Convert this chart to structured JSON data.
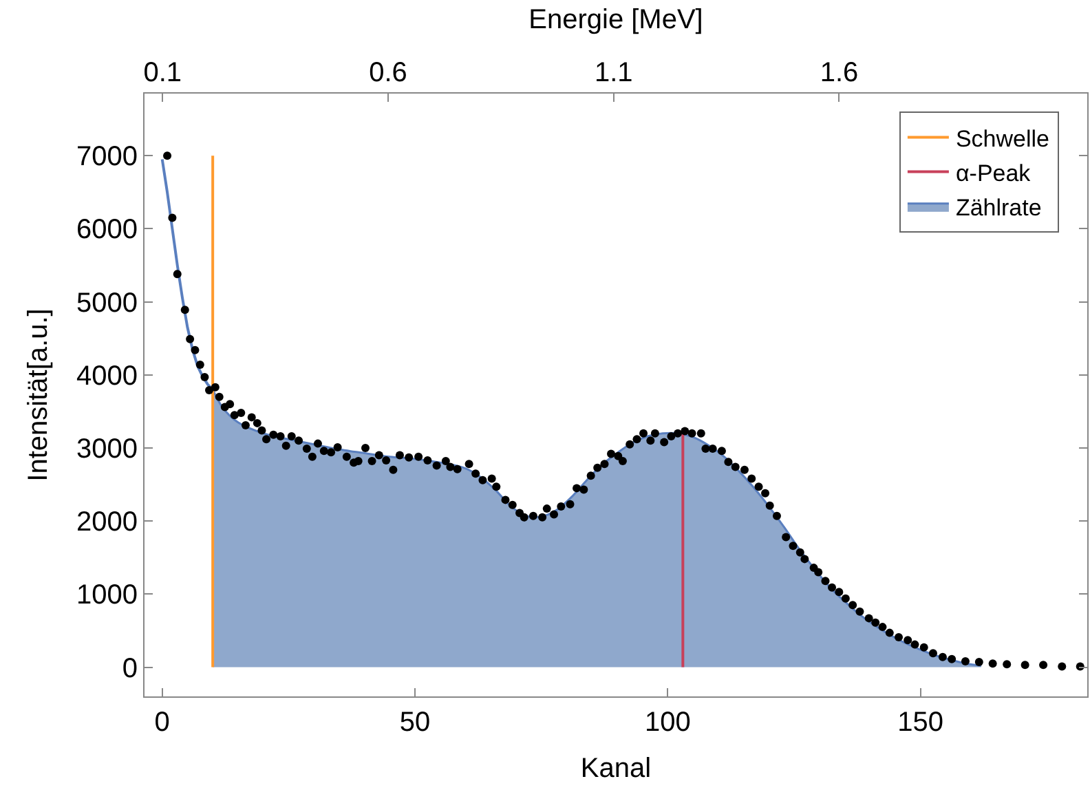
{
  "chart_data": {
    "type": "scatter",
    "xlabel": "Kanal",
    "ylabel": "Intensität[a.u.]",
    "x2label": "Energie [MeV]",
    "xlim": [
      -3.5,
      183
    ],
    "xticks": [
      0,
      50,
      100,
      150
    ],
    "ylim": [
      -400,
      7850
    ],
    "yticks": [
      0,
      1000,
      2000,
      3000,
      4000,
      5000,
      6000,
      7000
    ],
    "x2lim": [
      0.06,
      2.15
    ],
    "x2ticks": [
      0.1,
      0.6,
      1.1,
      1.6
    ],
    "legend": "top right",
    "series": [
      {
        "name": "Zählrate",
        "type": "area",
        "color": "#8fa8cc",
        "x": [
          10,
          12,
          15,
          20,
          25,
          30,
          35,
          40,
          45,
          50,
          55,
          60,
          63,
          66,
          69,
          72,
          75,
          78,
          81,
          84,
          87,
          90,
          93,
          96,
          99,
          102,
          105,
          108,
          111,
          114,
          117,
          120,
          123,
          126,
          129,
          132,
          135,
          138,
          141,
          144,
          147,
          150,
          153,
          156,
          159,
          162
        ],
        "values": [
          3800,
          3550,
          3350,
          3200,
          3120,
          3050,
          2980,
          2930,
          2880,
          2850,
          2800,
          2720,
          2600,
          2420,
          2200,
          2070,
          2060,
          2150,
          2330,
          2560,
          2770,
          2930,
          3070,
          3160,
          3200,
          3200,
          3150,
          3040,
          2890,
          2690,
          2460,
          2200,
          1920,
          1620,
          1350,
          1100,
          900,
          720,
          570,
          440,
          330,
          240,
          160,
          100,
          50,
          20
        ]
      },
      {
        "type": "line",
        "color": "#5a7fbf",
        "x": [
          0,
          1,
          2,
          3,
          4,
          5,
          6,
          7,
          8,
          9,
          10
        ],
        "values": [
          6950,
          6500,
          6000,
          5500,
          5050,
          4650,
          4350,
          4120,
          3980,
          3870,
          3800
        ]
      },
      {
        "name": "Schwelle",
        "type": "line",
        "color": "#ff9a2e",
        "x": [
          10,
          10
        ],
        "values": [
          0,
          7000
        ]
      },
      {
        "name": "α-Peak",
        "type": "line",
        "color": "#c8405a",
        "x": [
          103,
          103
        ],
        "values": [
          0,
          3200
        ]
      },
      {
        "marker": "circle",
        "color": "#000000",
        "x": [
          1,
          2,
          3,
          4.5,
          5.5,
          6.5,
          7.5,
          8.4,
          9.3,
          10.5,
          11.3,
          12.4,
          13.4,
          14.3,
          15.6,
          16.5,
          17.7,
          18.8,
          19.7,
          20.6,
          22,
          23.4,
          24.5,
          25.6,
          27,
          28.6,
          29.7,
          30.8,
          32,
          33.4,
          34.7,
          36.5,
          37.9,
          38.8,
          40.2,
          41.5,
          42.9,
          44.3,
          45.7,
          47,
          48.8,
          50.7,
          52.5,
          54.3,
          56.1,
          57,
          58.4,
          60.7,
          62,
          63.4,
          65.2,
          66.1,
          67.9,
          69.3,
          70.7,
          71.6,
          73.4,
          75.2,
          76.1,
          77.5,
          78.9,
          80.7,
          82,
          83.4,
          84.8,
          86.1,
          87.5,
          88.8,
          90.2,
          91.1,
          92.5,
          93.9,
          95.2,
          96.6,
          97.5,
          99.3,
          100.7,
          102,
          103.4,
          104.8,
          106.6,
          107.5,
          108.9,
          110.7,
          112,
          113.4,
          115.2,
          116.6,
          118,
          119.3,
          120.2,
          121.6,
          123.4,
          124.8,
          126.2,
          127.1,
          128.9,
          129.8,
          131.2,
          132.5,
          133.9,
          135.2,
          136.6,
          138,
          139.8,
          141.1,
          142.5,
          143.9,
          145.7,
          147.5,
          148.9,
          150.7,
          152.5,
          154.4,
          156.2,
          158.9,
          161.6,
          164.3,
          167.1,
          170.7,
          174.3,
          178,
          181.6
        ],
        "values": [
          7000,
          6150,
          5380,
          4890,
          4490,
          4340,
          4140,
          3970,
          3790,
          3830,
          3700,
          3560,
          3600,
          3450,
          3480,
          3310,
          3420,
          3340,
          3240,
          3120,
          3180,
          3160,
          3030,
          3160,
          3100,
          2990,
          2880,
          3060,
          2960,
          2940,
          3010,
          2880,
          2800,
          2820,
          3000,
          2820,
          2900,
          2830,
          2700,
          2900,
          2870,
          2880,
          2830,
          2760,
          2820,
          2740,
          2710,
          2780,
          2650,
          2560,
          2580,
          2470,
          2290,
          2220,
          2110,
          2050,
          2070,
          2050,
          2170,
          2090,
          2200,
          2230,
          2450,
          2430,
          2620,
          2730,
          2780,
          2920,
          2890,
          2820,
          3050,
          3120,
          3200,
          3100,
          3200,
          3080,
          3160,
          3200,
          3230,
          3200,
          3200,
          2990,
          2990,
          2960,
          2810,
          2740,
          2700,
          2580,
          2470,
          2380,
          2210,
          2070,
          1780,
          1660,
          1570,
          1480,
          1360,
          1300,
          1180,
          1090,
          1030,
          940,
          850,
          760,
          670,
          610,
          550,
          470,
          410,
          370,
          310,
          270,
          190,
          140,
          110,
          80,
          70,
          50,
          40,
          30,
          30,
          10,
          10
        ]
      }
    ]
  }
}
